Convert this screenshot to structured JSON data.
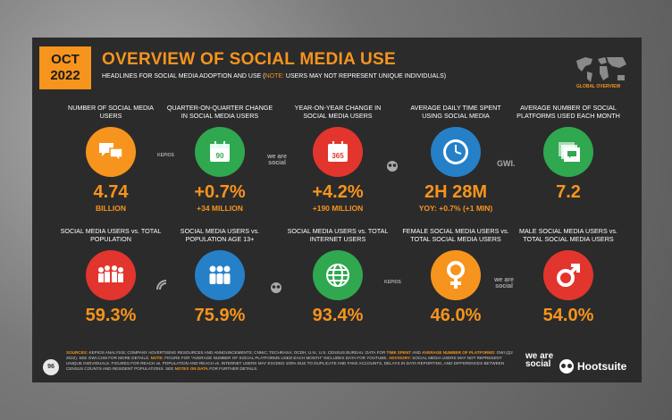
{
  "header": {
    "month": "OCT",
    "year": "2022",
    "title": "OVERVIEW OF SOCIAL MEDIA USE",
    "subtitle_pre": "HEADLINES FOR SOCIAL MEDIA ADOPTION AND USE (",
    "subtitle_note": "NOTE:",
    "subtitle_post": " USERS MAY NOT REPRESENT UNIQUE INDIVIDUALS)",
    "map_label": "GLOBAL OVERVIEW"
  },
  "row1": [
    {
      "label": "NUMBER OF SOCIAL MEDIA USERS",
      "value": "4.74",
      "sub": "BILLION",
      "icon": "chat-bubbles-icon",
      "color": "#f7941d"
    },
    {
      "label": "QUARTER-ON-QUARTER CHANGE IN SOCIAL MEDIA USERS",
      "value": "+0.7%",
      "sub": "+34 MILLION",
      "icon": "calendar-90-icon",
      "icon_text": "90",
      "color": "#2fa84f"
    },
    {
      "label": "YEAR-ON-YEAR CHANGE IN SOCIAL MEDIA USERS",
      "value": "+4.2%",
      "sub": "+190 MILLION",
      "icon": "calendar-365-icon",
      "icon_text": "365",
      "color": "#e2352d"
    },
    {
      "label": "AVERAGE DAILY TIME SPENT USING SOCIAL MEDIA",
      "value": "2H 28M",
      "sub": "YOY: +0.7% (+1 MIN)",
      "icon": "clock-icon",
      "color": "#2580c8"
    },
    {
      "label": "AVERAGE NUMBER OF SOCIAL PLATFORMS USED EACH MONTH",
      "value": "7.2",
      "sub": "",
      "icon": "stacked-cards-icon",
      "color": "#2fa84f"
    }
  ],
  "row2": [
    {
      "label": "SOCIAL MEDIA USERS vs. TOTAL POPULATION",
      "value": "59.3%",
      "icon": "crowd-icon",
      "color": "#e2352d"
    },
    {
      "label": "SOCIAL MEDIA USERS vs. POPULATION AGE 13+",
      "value": "75.9%",
      "icon": "people-icon",
      "color": "#2580c8"
    },
    {
      "label": "SOCIAL MEDIA USERS vs. TOTAL INTERNET USERS",
      "value": "93.4%",
      "icon": "globe-icon",
      "color": "#2fa84f"
    },
    {
      "label": "FEMALE SOCIAL MEDIA USERS vs. TOTAL SOCIAL MEDIA USERS",
      "value": "46.0%",
      "icon": "female-symbol-icon",
      "color": "#f7941d"
    },
    {
      "label": "MALE SOCIAL MEDIA USERS vs. TOTAL SOCIAL MEDIA USERS",
      "value": "54.0%",
      "icon": "male-symbol-icon",
      "color": "#e2352d"
    }
  ],
  "partners": {
    "kepios": "KEPIOS",
    "we_are_social": "we are social",
    "gwi": "GWI."
  },
  "footer": {
    "page": "96",
    "sources_label": "SOURCES:",
    "text1": " KEPIOS ANALYSIS; COMPANY ADVERTISING RESOURCES AND ANNOUNCEMENTS; CNNIC; TECHRASA; OCDH; U.N.; U.S. CENSUS BUREAU. DATA FOR ",
    "time_spent": "TIME SPENT",
    "text2": " AND ",
    "avg_platforms": "AVERAGE NUMBER OF PLATFORMS",
    "text3": ": GWI (Q2 2022). SEE GWI.COM FOR MORE DETAILS. ",
    "note_label": "NOTE:",
    "text4": " FIGURE FOR \"AVERAGE NUMBER OF SOCIAL PLATFORMS USED EACH MONTH\" INCLUDES DATA FOR YOUTUBE. ",
    "advisory_label": "ADVISORY:",
    "text5": " SOCIAL MEDIA USERS MAY NOT REPRESENT UNIQUE INDIVIDUALS. FIGURES FOR REACH vs. POPULATION AND REACH vs. INTERNET USERS MAY EXCEED 100% DUE TO DUPLICATE AND FAKE ACCOUNTS, DELAYS IN DATA REPORTING, AND DIFFERENCES BETWEEN CENSUS COUNTS AND RESIDENT POPULATIONS. SEE ",
    "notes_link": "NOTES ON DATA",
    "text6": " FOR FURTHER DETAILS.",
    "brand1": "we are social",
    "brand2": "Hootsuite"
  }
}
